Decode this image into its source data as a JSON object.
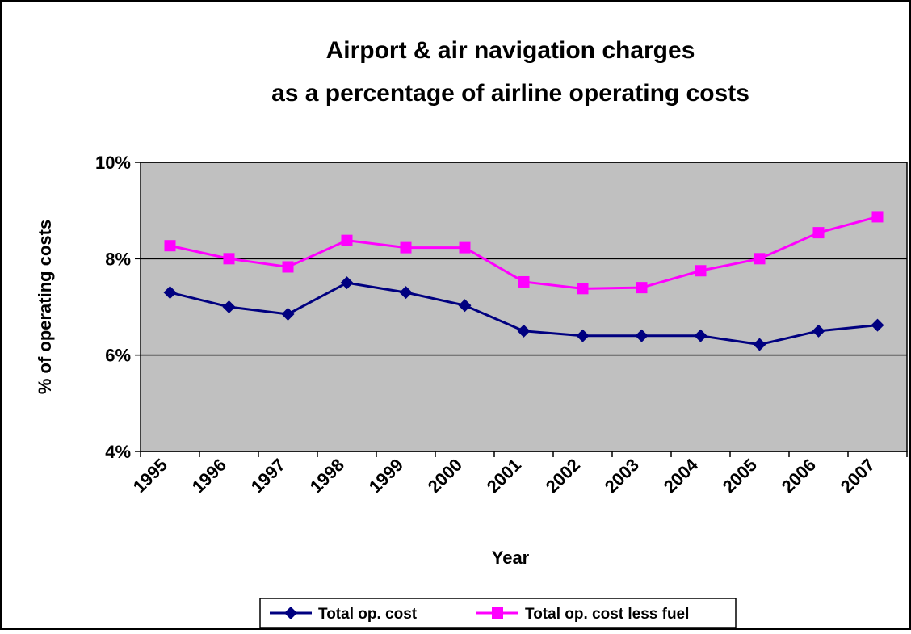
{
  "chart_data": {
    "type": "line",
    "title": [
      "Airport & air navigation charges",
      "as a percentage of airline operating costs"
    ],
    "x_label": "Year",
    "y_label": "% of operating costs",
    "categories": [
      "1995",
      "1996",
      "1997",
      "1998",
      "1999",
      "2000",
      "2001",
      "2002",
      "2003",
      "2004",
      "2005",
      "2006",
      "2007"
    ],
    "series": [
      {
        "name": "Total op. cost",
        "color": "#000080",
        "marker": "diamond",
        "values": [
          7.3,
          7.0,
          6.85,
          7.5,
          7.3,
          7.03,
          6.5,
          6.4,
          6.4,
          6.4,
          6.22,
          6.5,
          6.62
        ]
      },
      {
        "name": "Total op. cost less fuel",
        "color": "#ff00ff",
        "marker": "square",
        "values": [
          8.27,
          8.0,
          7.83,
          8.38,
          8.23,
          8.23,
          7.52,
          7.38,
          7.4,
          7.75,
          8.0,
          8.54,
          8.87
        ]
      }
    ],
    "ylim": [
      4,
      10
    ],
    "yticks": [
      {
        "value": 4,
        "label": "4%"
      },
      {
        "value": 6,
        "label": "6%"
      },
      {
        "value": 8,
        "label": "8%"
      },
      {
        "value": 10,
        "label": "10%"
      }
    ],
    "grid": true,
    "plot_background": "#c0c0c0",
    "legend": "bottom"
  }
}
